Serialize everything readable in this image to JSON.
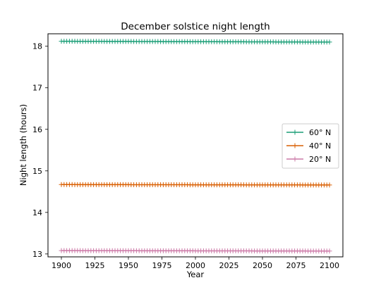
{
  "chart_data": {
    "type": "line",
    "title": "December solstice night length",
    "xlabel": "Year",
    "ylabel": "Night length (hours)",
    "xlim": [
      1890,
      2110
    ],
    "ylim": [
      12.93,
      18.3
    ],
    "xticks": [
      1900,
      1925,
      1950,
      1975,
      2000,
      2025,
      2050,
      2075,
      2100
    ],
    "yticks": [
      13,
      14,
      15,
      16,
      17,
      18
    ],
    "x_range": [
      1900,
      2100
    ],
    "x_step": 2,
    "marker": "+",
    "grid": false,
    "legend_position": "center-right",
    "series": [
      {
        "name": "60° N",
        "color": "#1b9e77",
        "y_start": 18.12,
        "y_end": 18.1
      },
      {
        "name": "40° N",
        "color": "#d95f02",
        "y_start": 14.67,
        "y_end": 14.66
      },
      {
        "name": "20° N",
        "color": "#cc79a7",
        "y_start": 13.08,
        "y_end": 13.07
      }
    ]
  }
}
